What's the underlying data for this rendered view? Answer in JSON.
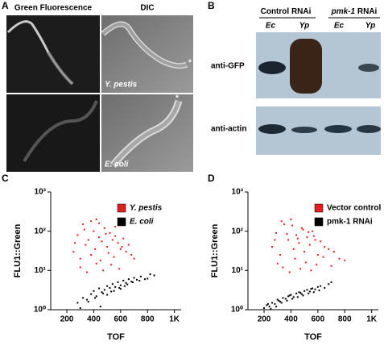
{
  "panel_labels": [
    "A",
    "B",
    "C",
    "D"
  ],
  "panel_a": {
    "headers": [
      "Green Fluorescence",
      "DIC"
    ],
    "row_labels": [
      "Y. pestis",
      "E. coli"
    ],
    "marker": "*"
  },
  "panel_b": {
    "groups": [
      {
        "gene": "Control",
        "suffix": "RNAi"
      },
      {
        "gene": "pmk-1",
        "suffix": "RNAi"
      }
    ],
    "lanes": [
      "Ec",
      "Yp",
      "Ec",
      "Yp"
    ],
    "blots": [
      "anti-GFP",
      "anti-actin"
    ]
  },
  "chart_data": [
    {
      "type": "scatter",
      "xlabel": "TOF",
      "ylabel": "FLU1::Green",
      "xlim": [
        80,
        1050
      ],
      "ylim": [
        1,
        1000
      ],
      "log_y": true,
      "legend": "upper right",
      "xticks": [
        200,
        400,
        600,
        800,
        {
          "value": 1000,
          "label": "1K"
        }
      ],
      "yticks": [
        {
          "value": 1,
          "label": "10⁰"
        },
        {
          "value": 10,
          "label": "10¹"
        },
        {
          "value": 100,
          "label": "10²"
        },
        {
          "value": 1000,
          "label": "10³"
        }
      ],
      "series": [
        {
          "name": "Y. pestis",
          "color": "#e02020",
          "x": [
            250,
            280,
            300,
            320,
            340,
            360,
            380,
            400,
            410,
            420,
            440,
            450,
            460,
            480,
            500,
            510,
            520,
            540,
            550,
            560,
            580,
            600,
            620,
            640,
            660,
            680,
            700,
            300,
            350,
            420,
            470,
            530,
            590,
            260,
            380,
            490,
            610,
            330,
            440,
            560
          ],
          "values": [
            30,
            80,
            20,
            150,
            45,
            60,
            25,
            100,
            35,
            200,
            70,
            18,
            55,
            120,
            40,
            28,
            90,
            60,
            22,
            75,
            50,
            35,
            65,
            30,
            45,
            25,
            20,
            12,
            9,
            15,
            10,
            14,
            11,
            50,
            180,
            85,
            40,
            110,
            160,
            130
          ]
        },
        {
          "name": "E. coli",
          "color": "#000000",
          "x": [
            280,
            320,
            350,
            380,
            400,
            420,
            440,
            460,
            480,
            500,
            520,
            540,
            560,
            580,
            600,
            620,
            640,
            660,
            680,
            700,
            720,
            750,
            780,
            820,
            850,
            450,
            500,
            550,
            600,
            650,
            300,
            360,
            410,
            470,
            530,
            590,
            630,
            690,
            740,
            800
          ],
          "values": [
            1.5,
            2,
            1.8,
            2.5,
            3,
            2.2,
            3.5,
            2.8,
            3.2,
            4,
            3.6,
            4.5,
            3.8,
            5,
            4.2,
            5.5,
            4.8,
            6,
            5.2,
            6.5,
            5.8,
            7,
            6,
            8,
            7.5,
            1.2,
            2.4,
            3,
            3.4,
            4.4,
            1.1,
            1.6,
            2,
            2.6,
            2.9,
            3.6,
            4,
            5,
            5.5,
            6.2
          ]
        }
      ]
    },
    {
      "type": "scatter",
      "xlabel": "TOF",
      "ylabel": "FLU1::Green",
      "xlim": [
        80,
        1050
      ],
      "ylim": [
        1,
        1000
      ],
      "log_y": true,
      "legend": "upper right",
      "xticks": [
        200,
        400,
        600,
        800,
        {
          "value": 1000,
          "label": "1K"
        }
      ],
      "yticks": [
        {
          "value": 1,
          "label": "10⁰"
        },
        {
          "value": 10,
          "label": "10¹"
        },
        {
          "value": 100,
          "label": "10²"
        },
        {
          "value": 1000,
          "label": "10³"
        }
      ],
      "series": [
        {
          "name": "Vector control",
          "color": "#e02020",
          "x": [
            260,
            290,
            320,
            350,
            380,
            400,
            420,
            440,
            460,
            480,
            500,
            520,
            540,
            560,
            580,
            600,
            620,
            650,
            680,
            720,
            760,
            800,
            300,
            340,
            390,
            430,
            470,
            510,
            550,
            590,
            640,
            700,
            330,
            410,
            490,
            570,
            280,
            370,
            450,
            530
          ],
          "values": [
            40,
            90,
            25,
            150,
            60,
            200,
            35,
            80,
            50,
            120,
            30,
            70,
            45,
            100,
            60,
            25,
            55,
            40,
            35,
            30,
            20,
            18,
            15,
            12,
            9,
            20,
            11,
            16,
            10,
            14,
            22,
            13,
            180,
            140,
            110,
            75,
            60,
            85,
            65,
            95
          ]
        },
        {
          "name": "pmk-1 RNAi",
          "color": "#000000",
          "x": [
            200,
            220,
            240,
            260,
            280,
            300,
            320,
            340,
            360,
            380,
            400,
            420,
            440,
            460,
            480,
            500,
            520,
            540,
            560,
            580,
            600,
            620,
            650,
            680,
            700,
            250,
            290,
            330,
            370,
            410,
            450,
            490,
            530,
            570,
            610,
            230,
            310,
            390,
            470,
            550
          ],
          "values": [
            1.1,
            1.3,
            1.2,
            1.5,
            1.4,
            1.8,
            1.6,
            2,
            1.9,
            2.2,
            2.4,
            2.1,
            2.6,
            2.8,
            2.5,
            3,
            3.2,
            2.9,
            3.5,
            3.3,
            3.8,
            4,
            3.6,
            4.5,
            5,
            1.05,
            1.2,
            1.5,
            1.7,
            1.9,
            2.1,
            2.3,
            2.6,
            2.8,
            3.1,
            1.4,
            1.7,
            2.3,
            2.7,
            3.4
          ]
        }
      ]
    }
  ]
}
